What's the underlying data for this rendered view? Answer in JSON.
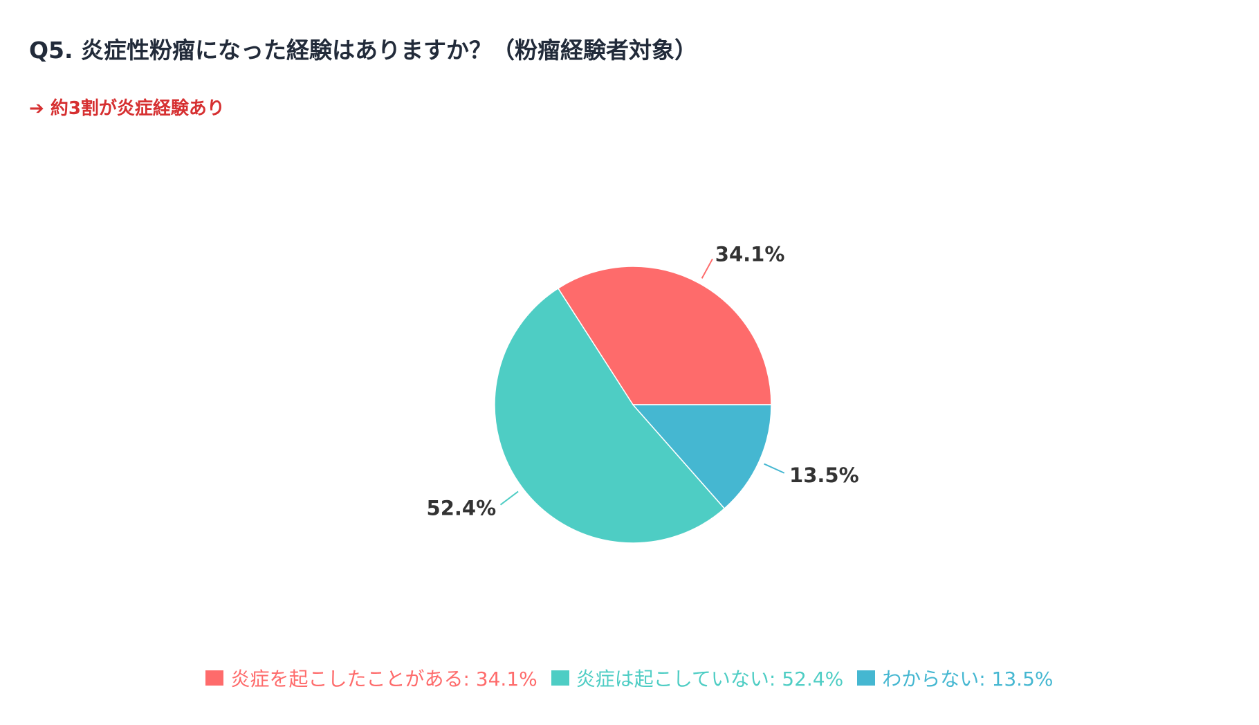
{
  "title": "Q5. 炎症性粉瘤になった経験はありますか？（粉瘤経験者対象）",
  "subtitle": "➔ 約3割が炎症経験あり",
  "chart_data": {
    "type": "pie",
    "title": "Q5. 炎症性粉瘤になった経験はありますか？（粉瘤経験者対象）",
    "subtitle": "➔ 約3割が炎症経験あり",
    "legend_position": "bottom",
    "slices": [
      {
        "label": "炎症を起こしたことがある",
        "value": 34.1,
        "value_label": "34.1%",
        "legend_text": "炎症を起こしたことがある: 34.1%",
        "color": "#fe6b6b"
      },
      {
        "label": "炎症は起こしていない",
        "value": 52.4,
        "value_label": "52.4%",
        "legend_text": "炎症は起こしていない: 52.4%",
        "color": "#4ecdc4"
      },
      {
        "label": "わからない",
        "value": 13.5,
        "value_label": "13.5%",
        "legend_text": "わからない: 13.5%",
        "color": "#45b7d1"
      }
    ]
  }
}
